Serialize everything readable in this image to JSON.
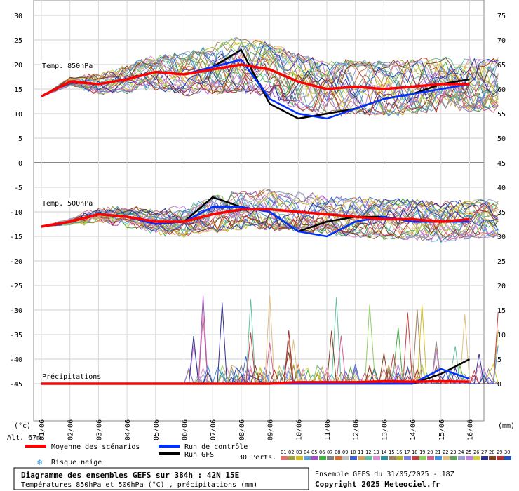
{
  "header": {},
  "panels": {
    "t850_label": "Temp. 850hPa",
    "t500_label": "Temp. 500hPa",
    "precip_label": "Précipitations"
  },
  "axes": {
    "left_unit": "(°c)",
    "right_unit": "(mm)",
    "altitude": "Alt. 67m",
    "left_ticks": [
      30,
      25,
      20,
      15,
      10,
      5,
      0,
      -5,
      -10,
      -15,
      -20,
      -25,
      -30,
      -35,
      -40,
      -45
    ],
    "right_ticks_top": [
      75,
      70,
      65,
      60,
      55,
      50,
      45
    ],
    "right_ticks_bottom": [
      40,
      35,
      30,
      25,
      20,
      15,
      10,
      5,
      0
    ],
    "date_labels": [
      "01/06",
      "02/06",
      "03/06",
      "04/06",
      "05/06",
      "06/06",
      "07/06",
      "08/06",
      "09/06",
      "10/06",
      "11/06",
      "12/06",
      "13/06",
      "14/06",
      "15/06",
      "16/06"
    ]
  },
  "legend": {
    "mean_label": "Moyenne des scénarios",
    "control_label": "Run de contrôle",
    "gfs_label": "Run GFS",
    "snow_label": "Risque neige",
    "perts_label": "30 Perts.",
    "pert_numbers": [
      "01",
      "02",
      "03",
      "04",
      "05",
      "06",
      "07",
      "08",
      "09",
      "10",
      "11",
      "12",
      "13",
      "14",
      "15",
      "16",
      "17",
      "18",
      "19",
      "20",
      "21",
      "22",
      "23",
      "24",
      "25",
      "26",
      "27",
      "28",
      "29",
      "30"
    ],
    "pert_colors": [
      "#e07070",
      "#a0a040",
      "#d0c020",
      "#60a0d0",
      "#a050c0",
      "#40b040",
      "#808080",
      "#d07030",
      "#c0c0c0",
      "#4060d0",
      "#d0a060",
      "#60c0a0",
      "#e090d0",
      "#3090a0",
      "#a08060",
      "#b0b030",
      "#8080e0",
      "#c04040",
      "#90d060",
      "#d06090",
      "#4090e0",
      "#e0c080",
      "#60a060",
      "#a0a0d0",
      "#c080e0",
      "#d0d040",
      "#303090",
      "#804020",
      "#b03030",
      "#2050c0"
    ],
    "mean_color": "#ff0000",
    "control_color": "#0030ff",
    "gfs_color": "#000000"
  },
  "footer": {
    "title": "Diagramme des ensembles GEFS sur 384h : 42N 15E",
    "subtitle": "Températures 850hPa et 500hPa (°C) , précipitations (mm)",
    "run_info": "Ensemble GEFS du 31/05/2025 - 18Z",
    "copyright": "Copyright 2025 Meteociel.fr"
  },
  "chart_data": [
    {
      "type": "line",
      "title": "Temp. 850hPa",
      "x": [
        "01/06",
        "02/06",
        "03/06",
        "04/06",
        "05/06",
        "06/06",
        "07/06",
        "08/06",
        "09/06",
        "10/06",
        "11/06",
        "12/06",
        "13/06",
        "14/06",
        "15/06",
        "16/06"
      ],
      "ylim": [
        0,
        30
      ],
      "series": [
        {
          "name": "Moyenne des scénarios",
          "values": [
            13.5,
            16.5,
            16,
            17,
            18.5,
            18,
            19,
            20,
            19,
            16.5,
            15,
            15.5,
            15,
            15.5,
            16,
            16
          ]
        },
        {
          "name": "Run de contrôle",
          "values": [
            13.5,
            16.5,
            16,
            17,
            18.5,
            18,
            19.5,
            21,
            13,
            10,
            9,
            11,
            13,
            14,
            15,
            16
          ]
        },
        {
          "name": "Run GFS",
          "values": [
            13.5,
            16.5,
            16,
            17,
            18.5,
            18,
            19.5,
            23,
            12,
            9,
            10,
            11,
            13,
            14,
            16,
            17
          ]
        }
      ]
    },
    {
      "type": "line",
      "title": "Temp. 500hPa",
      "x": [
        "01/06",
        "02/06",
        "03/06",
        "04/06",
        "05/06",
        "06/06",
        "07/06",
        "08/06",
        "09/06",
        "10/06",
        "11/06",
        "12/06",
        "13/06",
        "14/06",
        "15/06",
        "16/06"
      ],
      "ylim": [
        -45,
        0
      ],
      "series": [
        {
          "name": "Moyenne des scénarios",
          "values": [
            -13,
            -12,
            -10.5,
            -11,
            -12,
            -12,
            -10.5,
            -9.5,
            -9.5,
            -10,
            -10.5,
            -11,
            -11.5,
            -11.5,
            -12,
            -11.5
          ]
        },
        {
          "name": "Run de contrôle",
          "values": [
            -13,
            -12,
            -10.5,
            -11,
            -12.5,
            -12,
            -9,
            -9,
            -10,
            -14,
            -15,
            -12,
            -11,
            -12,
            -12,
            -12
          ]
        },
        {
          "name": "Run GFS",
          "values": [
            -13,
            -12,
            -10.5,
            -11,
            -12.5,
            -12,
            -7,
            -9,
            -10,
            -14,
            -12,
            -11,
            -11,
            -12,
            -12,
            -12
          ]
        }
      ]
    },
    {
      "type": "line",
      "title": "Précipitations",
      "x": [
        "01/06",
        "02/06",
        "03/06",
        "04/06",
        "05/06",
        "06/06",
        "07/06",
        "08/06",
        "09/06",
        "10/06",
        "11/06",
        "12/06",
        "13/06",
        "14/06",
        "15/06",
        "16/06"
      ],
      "ylim": [
        0,
        40
      ],
      "series": [
        {
          "name": "Moyenne des scénarios",
          "values": [
            0,
            0,
            0,
            0,
            0,
            0,
            0,
            0,
            0,
            0.3,
            0.3,
            0.3,
            0.5,
            0.4,
            0.5,
            0.4
          ]
        },
        {
          "name": "Run de contrôle",
          "values": [
            0,
            0,
            0,
            0,
            0,
            0,
            0,
            0,
            0,
            0,
            0,
            0,
            0,
            0,
            3,
            1
          ]
        },
        {
          "name": "Run GFS",
          "values": [
            0,
            0,
            0,
            0,
            0,
            0,
            0,
            0,
            0,
            0,
            0,
            0,
            0,
            0,
            2,
            5
          ]
        }
      ]
    }
  ]
}
